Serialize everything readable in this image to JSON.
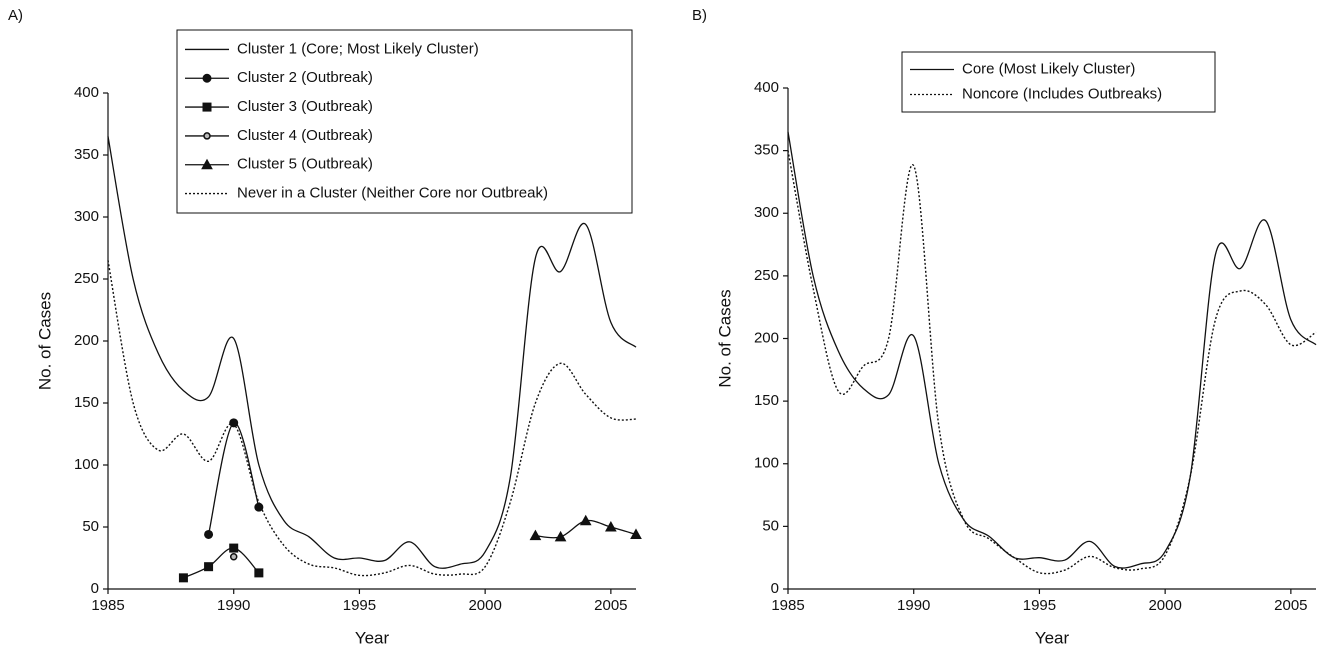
{
  "chart_data": [
    {
      "type": "line",
      "panel_label": "A)",
      "x_label": "Year",
      "y_label": "No. of Cases",
      "x": [
        1985,
        1986,
        1987,
        1988,
        1989,
        1990,
        1991,
        1992,
        1993,
        1994,
        1995,
        1996,
        1997,
        1998,
        1999,
        2000,
        2001,
        2002,
        2003,
        2004,
        2005,
        2006
      ],
      "xlim": [
        1985,
        2006
      ],
      "xticks": [
        1985,
        1990,
        1995,
        2000,
        2005
      ],
      "ylim": [
        0,
        400
      ],
      "yticks": [
        0,
        50,
        100,
        150,
        200,
        250,
        300,
        350,
        400
      ],
      "grid": false,
      "legend": "top",
      "series": [
        {
          "name": "Cluster 1 (Core; Most Likely Cluster)",
          "color": "#111111",
          "style": "solid",
          "marker": "none",
          "values": [
            365,
            250,
            190,
            160,
            155,
            202,
            100,
            55,
            42,
            25,
            25,
            23,
            38,
            18,
            20,
            30,
            90,
            267,
            256,
            294,
            215,
            195
          ]
        },
        {
          "name": "Cluster 2 (Outbreak)",
          "color": "#111111",
          "style": "solid",
          "marker": "circle",
          "values": [
            null,
            null,
            null,
            null,
            44,
            134,
            66,
            null,
            null,
            null,
            null,
            null,
            null,
            null,
            null,
            null,
            null,
            null,
            null,
            null,
            null,
            null
          ]
        },
        {
          "name": "Cluster 3 (Outbreak)",
          "color": "#111111",
          "style": "solid",
          "marker": "square",
          "values": [
            null,
            null,
            null,
            9,
            18,
            33,
            13,
            null,
            null,
            null,
            null,
            null,
            null,
            null,
            null,
            null,
            null,
            null,
            null,
            null,
            null,
            null
          ]
        },
        {
          "name": "Cluster 4 (Outbreak)",
          "color": "#111111",
          "style": "solid",
          "marker": "star",
          "values": [
            null,
            null,
            null,
            null,
            null,
            26,
            null,
            null,
            null,
            null,
            null,
            null,
            null,
            null,
            null,
            null,
            null,
            null,
            null,
            null,
            null,
            null
          ]
        },
        {
          "name": "Cluster 5 (Outbreak)",
          "color": "#111111",
          "style": "solid",
          "marker": "triangle",
          "values": [
            null,
            null,
            null,
            null,
            null,
            null,
            null,
            null,
            null,
            null,
            null,
            null,
            null,
            null,
            null,
            null,
            null,
            43,
            42,
            55,
            50,
            44
          ]
        },
        {
          "name": "Never in a Cluster (Neither Core nor Outbreak)",
          "color": "#111111",
          "style": "dotted",
          "marker": "none",
          "values": [
            265,
            150,
            112,
            125,
            103,
            133,
            70,
            35,
            20,
            17,
            11,
            13,
            19,
            12,
            12,
            18,
            70,
            150,
            182,
            157,
            138,
            137
          ]
        }
      ]
    },
    {
      "type": "line",
      "panel_label": "B)",
      "x_label": "Year",
      "y_label": "No. of Cases",
      "x": [
        1985,
        1986,
        1987,
        1988,
        1989,
        1990,
        1991,
        1992,
        1993,
        1994,
        1995,
        1996,
        1997,
        1998,
        1999,
        2000,
        2001,
        2002,
        2003,
        2004,
        2005,
        2006
      ],
      "xlim": [
        1985,
        2006
      ],
      "xticks": [
        1985,
        1990,
        1995,
        2000,
        2005
      ],
      "ylim": [
        0,
        400
      ],
      "yticks": [
        0,
        50,
        100,
        150,
        200,
        250,
        300,
        350,
        400
      ],
      "grid": false,
      "legend": "top",
      "series": [
        {
          "name": "Core (Most Likely Cluster)",
          "color": "#111111",
          "style": "solid",
          "marker": "none",
          "values": [
            365,
            250,
            190,
            160,
            155,
            202,
            100,
            55,
            42,
            25,
            25,
            23,
            38,
            18,
            20,
            30,
            90,
            267,
            256,
            294,
            215,
            195
          ]
        },
        {
          "name": "Noncore (Includes Outbreaks)",
          "color": "#111111",
          "style": "dotted",
          "marker": "none",
          "values": [
            350,
            240,
            158,
            178,
            200,
            338,
            130,
            55,
            40,
            25,
            13,
            15,
            26,
            17,
            16,
            27,
            90,
            215,
            238,
            227,
            195,
            205
          ]
        }
      ]
    }
  ]
}
